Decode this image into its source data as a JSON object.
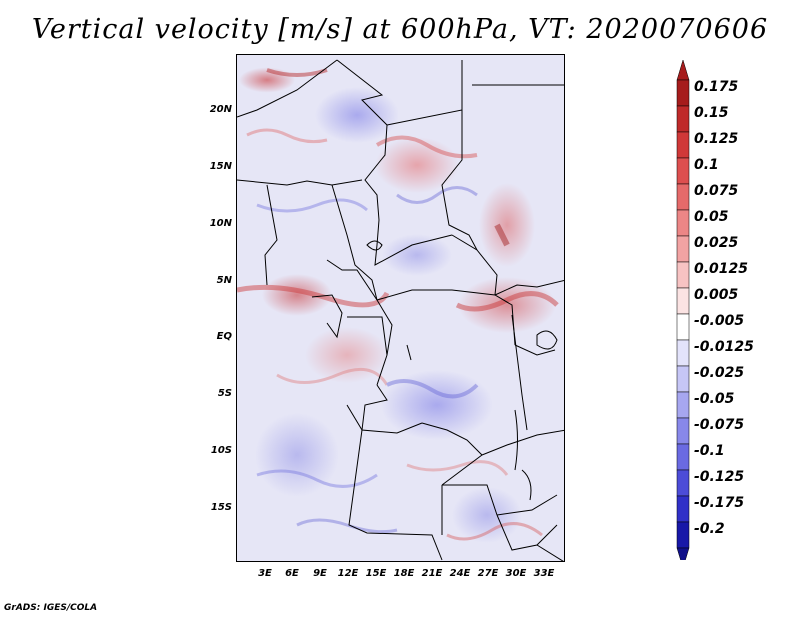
{
  "title": "Vertical velocity [m/s] at 600hPa, VT: 2020070606",
  "lat_labels": [
    "20N",
    "15N",
    "10N",
    "5N",
    "EQ",
    "5S",
    "10S",
    "15S"
  ],
  "lon_labels": [
    "3E",
    "6E",
    "9E",
    "12E",
    "15E",
    "18E",
    "21E",
    "24E",
    "27E",
    "30E",
    "33E"
  ],
  "colorbar": {
    "labels": [
      "0.175",
      "0.15",
      "0.125",
      "0.1",
      "0.075",
      "0.05",
      "0.025",
      "0.0125",
      "0.005",
      "-0.005",
      "-0.0125",
      "-0.025",
      "-0.05",
      "-0.075",
      "-0.1",
      "-0.125",
      "-0.175",
      "-0.2"
    ],
    "colors": [
      "#a61c1c",
      "#bf2a2a",
      "#d03838",
      "#dd4f4f",
      "#e56a6a",
      "#ec8686",
      "#f2a3a3",
      "#f7c3c3",
      "#fbe3e3",
      "#ffffff",
      "#e3e3fb",
      "#c6c6f6",
      "#a7a7f0",
      "#8888ea",
      "#6a6ae2",
      "#4c4cd8",
      "#3030c8",
      "#1818a8"
    ],
    "cap_top_color": "#a61c1c",
    "cap_bottom_color": "#10108a"
  },
  "credit": "GrADS: IGES/COLA"
}
